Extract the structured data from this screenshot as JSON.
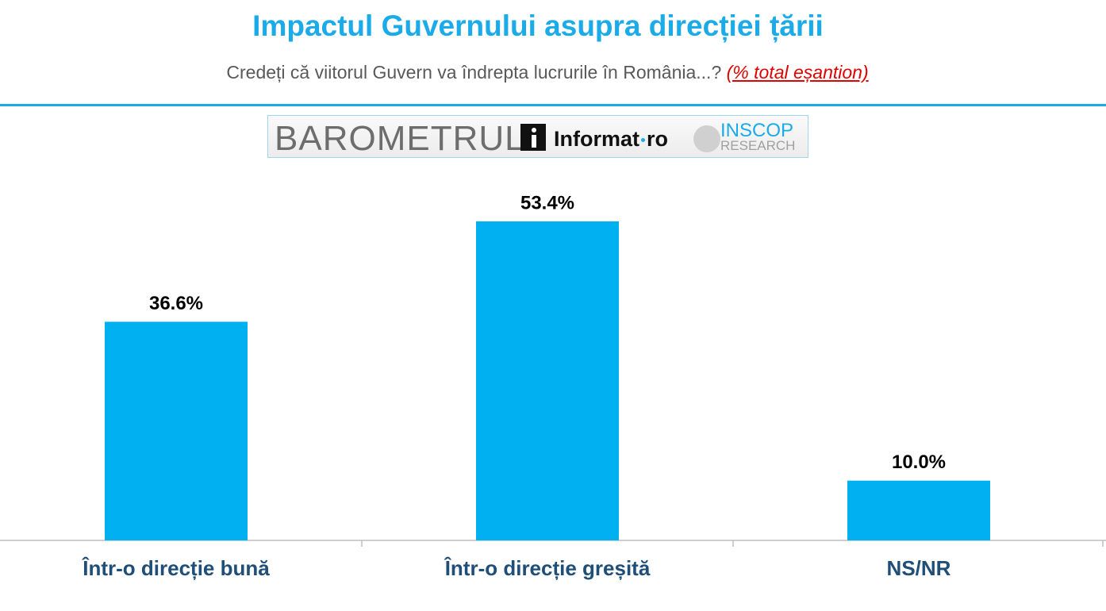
{
  "chart_data": {
    "type": "bar",
    "title": "Impactul Guvernului asupra direcției țării",
    "subtitle": "Credeți că viitorul Guvern va îndrepta lucrurile în România...?",
    "subtitle_note": "(% total eșantion)",
    "categories": [
      "Într-o direcție bună",
      "Într-o direcție greșită",
      "NS/NR"
    ],
    "values": [
      36.6,
      53.4,
      10.0
    ],
    "value_labels": [
      "36.6%",
      "53.4%",
      "10.0%"
    ],
    "color": "#00b0f0"
  },
  "logo": {
    "barometer": "BAROMETRUL",
    "informat": "Informat",
    "informat_suffix": "ro",
    "inscop": "INSCOP",
    "inscop_sub": "RESEARCH"
  }
}
